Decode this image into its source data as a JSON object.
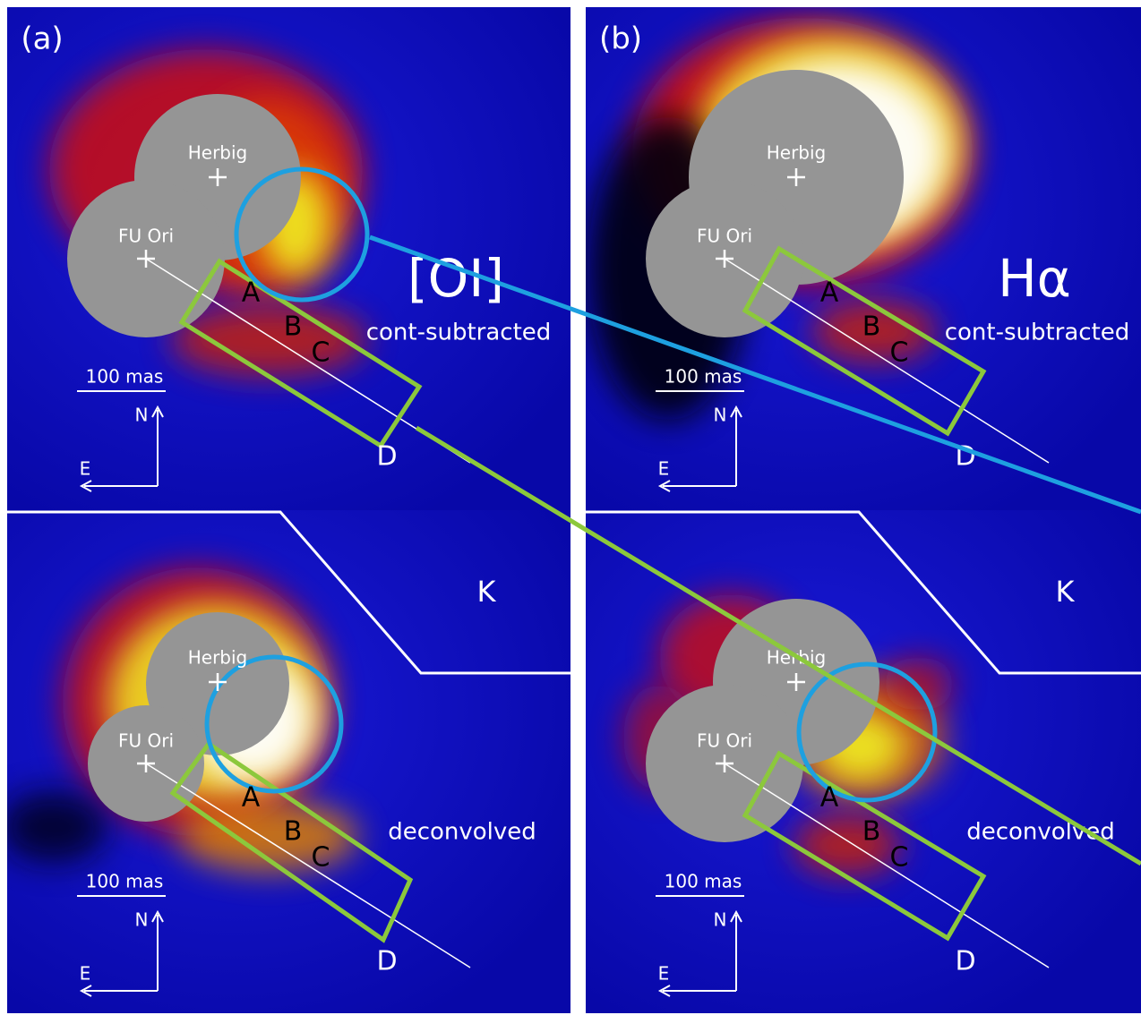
{
  "panels": [
    {
      "id_label": "(a)",
      "band": "[OI]",
      "processing": "cont-subtracted",
      "stars": [
        "Herbig",
        "FU Ori"
      ],
      "knots": [
        "A",
        "B",
        "C",
        "D"
      ],
      "scale_bar": "100 mas",
      "north": "N",
      "east": "E"
    },
    {
      "id_label": "(b)",
      "band": "Hα",
      "processing": "cont-subtracted",
      "stars": [
        "Herbig",
        "FU Ori"
      ],
      "knots": [
        "A",
        "B",
        "C",
        "D"
      ],
      "scale_bar": "100 mas",
      "north": "N",
      "east": "E"
    },
    {
      "band": "K",
      "processing": "deconvolved",
      "stars": [
        "Herbig",
        "FU Ori"
      ],
      "knots": [
        "A",
        "B",
        "C",
        "D"
      ],
      "scale_bar": "100 mas",
      "north": "N",
      "east": "E"
    },
    {
      "band": "K",
      "processing": "deconvolved",
      "stars": [
        "Herbig",
        "FU Ori"
      ],
      "knots": [
        "A",
        "B",
        "C",
        "D"
      ],
      "scale_bar": "100 mas",
      "north": "N",
      "east": "E"
    }
  ]
}
